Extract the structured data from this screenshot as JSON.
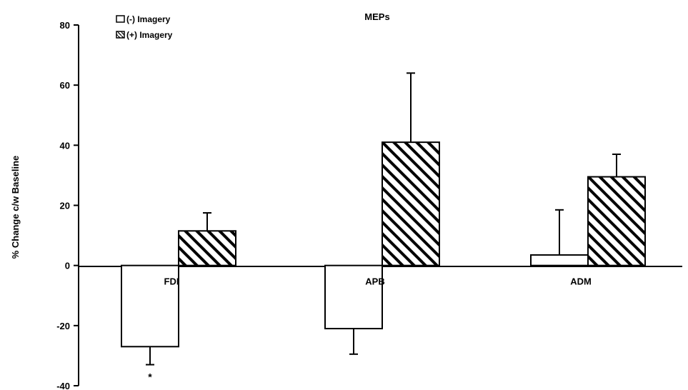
{
  "chart_data": {
    "type": "bar",
    "title": "MEPs",
    "ylabel": "% Change c/w Baseline",
    "xlabel": "",
    "ylim": [
      -40,
      80
    ],
    "yticks": [
      80,
      60,
      40,
      20,
      0,
      -20,
      -40
    ],
    "categories": [
      "FDI",
      "APB",
      "ADM"
    ],
    "series": [
      {
        "name": "(-) Imagery",
        "values": [
          -27,
          -21,
          3.5
        ],
        "errors": [
          6,
          8.5,
          15
        ],
        "pattern": "none"
      },
      {
        "name": "(+) Imagery",
        "values": [
          11.5,
          41,
          29.5
        ],
        "errors": [
          6,
          23,
          7.5
        ],
        "pattern": "hatch"
      }
    ],
    "annotations": [
      {
        "text": "*",
        "category": "FDI",
        "series": 0
      }
    ],
    "grid": false,
    "legend_position": "top-left"
  }
}
